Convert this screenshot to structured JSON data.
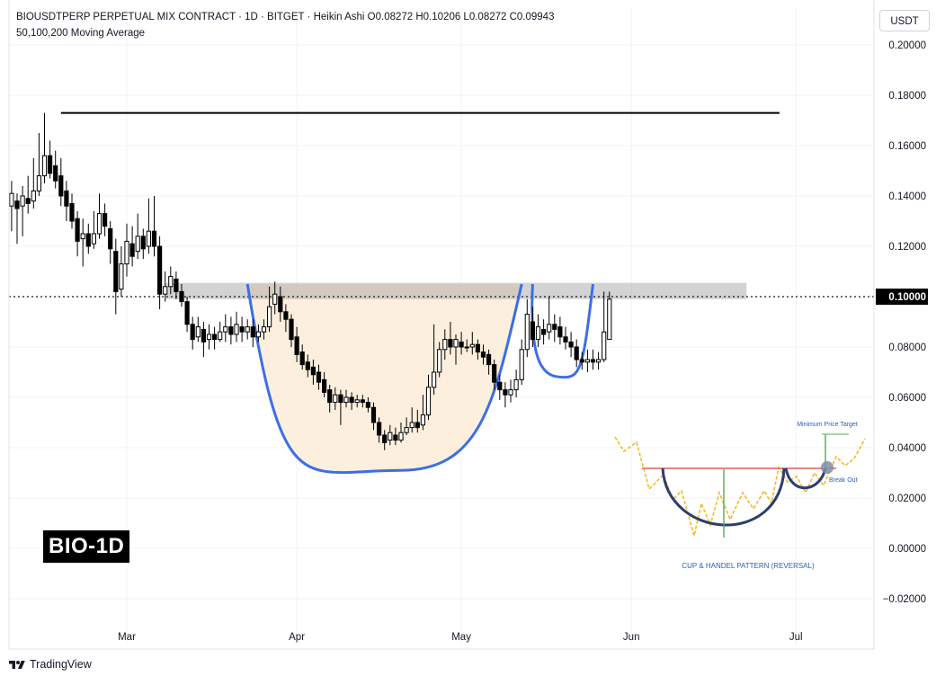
{
  "header": {
    "title": "BIOUSDTPERP PERPETUAL MIX CONTRACT · 1D · BITGET · Heikin Ashi  O0.08272  H0.10206  L0.08272  C0.09943",
    "indicator": "50,100,200 Moving Average"
  },
  "currency_button": "USDT",
  "badge": "BIO-1D",
  "footer": {
    "brand": "TradingView"
  },
  "colors": {
    "candle_up": "#ffffff",
    "candle_down": "#000000",
    "candle_outline": "#000000",
    "cup_line": "#3c6ee8",
    "cup_fill": "#fdebd5",
    "resistance_zone": "#9e9e9e",
    "resistance_line": "#000000",
    "price_tag_bg": "#000000",
    "inset_zigzag": "#f5b92c",
    "inset_neckline": "#e85a55",
    "inset_cup": "#2c3e6e",
    "inset_target": "#4caf50",
    "inset_text": "#2a5fb4"
  },
  "chart_data": {
    "type": "candlestick",
    "subtype": "Heikin Ashi",
    "symbol": "BIOUSDTPERP",
    "timeframe": "1D",
    "y_axis": {
      "ticks": [
        "0.20000",
        "0.18000",
        "0.16000",
        "0.14000",
        "0.12000",
        "0.10000",
        "0.08000",
        "0.06000",
        "0.04000",
        "0.02000",
        "0.00000",
        "−0.02000"
      ],
      "range": [
        -0.026,
        0.206
      ]
    },
    "x_axis": {
      "ticks": [
        {
          "label": "Mar",
          "date": "2025-03-01"
        },
        {
          "label": "Apr",
          "date": "2025-04-01"
        },
        {
          "label": "May",
          "date": "2025-05-01"
        },
        {
          "label": "Jun",
          "date": "2025-06-01"
        },
        {
          "label": "Jul",
          "date": "2025-07-01"
        }
      ],
      "start_date": "2025-02-08",
      "end_date": "2025-07-19"
    },
    "current_price": {
      "value": 0.1,
      "label": "0.10000"
    },
    "horizontal_line": {
      "value": 0.173,
      "from_date": "2025-02-17",
      "to_date": "2025-06-28"
    },
    "resistance_zone": {
      "low": 0.099,
      "high": 0.1055,
      "from_date": "2025-03-08",
      "to_date": "2025-06-22"
    },
    "cup": {
      "left_date": "2025-03-23",
      "left_price": 0.105,
      "bottom_date": "2025-04-20",
      "bottom_price": 0.031,
      "right_date": "2025-05-12",
      "right_price": 0.105
    },
    "handle": {
      "left_date": "2025-05-14",
      "bottom_date": "2025-05-20",
      "bottom_price": 0.068,
      "right_date": "2025-05-25",
      "right_price": 0.105
    },
    "candles": [
      {
        "d": "2025-02-08",
        "o": 0.136,
        "c": 0.141,
        "h": 0.146,
        "l": 0.126
      },
      {
        "d": "2025-02-09",
        "o": 0.138,
        "c": 0.135,
        "h": 0.141,
        "l": 0.121
      },
      {
        "d": "2025-02-10",
        "o": 0.136,
        "c": 0.14,
        "h": 0.144,
        "l": 0.124
      },
      {
        "d": "2025-02-11",
        "o": 0.139,
        "c": 0.137,
        "h": 0.148,
        "l": 0.133
      },
      {
        "d": "2025-02-12",
        "o": 0.138,
        "c": 0.142,
        "h": 0.155,
        "l": 0.135
      },
      {
        "d": "2025-02-13",
        "o": 0.142,
        "c": 0.148,
        "h": 0.165,
        "l": 0.14
      },
      {
        "d": "2025-02-14",
        "o": 0.148,
        "c": 0.156,
        "h": 0.173,
        "l": 0.145
      },
      {
        "d": "2025-02-15",
        "o": 0.156,
        "c": 0.149,
        "h": 0.162,
        "l": 0.147
      },
      {
        "d": "2025-02-16",
        "o": 0.152,
        "c": 0.146,
        "h": 0.158,
        "l": 0.143
      },
      {
        "d": "2025-02-17",
        "o": 0.148,
        "c": 0.14,
        "h": 0.155,
        "l": 0.136
      },
      {
        "d": "2025-02-18",
        "o": 0.142,
        "c": 0.136,
        "h": 0.146,
        "l": 0.13
      },
      {
        "d": "2025-02-19",
        "o": 0.137,
        "c": 0.13,
        "h": 0.141,
        "l": 0.127
      },
      {
        "d": "2025-02-20",
        "o": 0.131,
        "c": 0.122,
        "h": 0.134,
        "l": 0.116
      },
      {
        "d": "2025-02-21",
        "o": 0.123,
        "c": 0.125,
        "h": 0.131,
        "l": 0.112
      },
      {
        "d": "2025-02-22",
        "o": 0.125,
        "c": 0.12,
        "h": 0.129,
        "l": 0.117
      },
      {
        "d": "2025-02-23",
        "o": 0.121,
        "c": 0.125,
        "h": 0.134,
        "l": 0.119
      },
      {
        "d": "2025-02-24",
        "o": 0.125,
        "c": 0.133,
        "h": 0.141,
        "l": 0.123
      },
      {
        "d": "2025-02-25",
        "o": 0.133,
        "c": 0.128,
        "h": 0.137,
        "l": 0.124
      },
      {
        "d": "2025-02-26",
        "o": 0.127,
        "c": 0.119,
        "h": 0.13,
        "l": 0.113
      },
      {
        "d": "2025-02-27",
        "o": 0.118,
        "c": 0.102,
        "h": 0.123,
        "l": 0.093
      },
      {
        "d": "2025-02-28",
        "o": 0.103,
        "c": 0.113,
        "h": 0.12,
        "l": 0.1
      },
      {
        "d": "2025-03-01",
        "o": 0.113,
        "c": 0.122,
        "h": 0.129,
        "l": 0.108
      },
      {
        "d": "2025-03-02",
        "o": 0.121,
        "c": 0.116,
        "h": 0.128,
        "l": 0.112
      },
      {
        "d": "2025-03-03",
        "o": 0.118,
        "c": 0.124,
        "h": 0.133,
        "l": 0.115
      },
      {
        "d": "2025-03-04",
        "o": 0.124,
        "c": 0.119,
        "h": 0.127,
        "l": 0.115
      },
      {
        "d": "2025-03-05",
        "o": 0.12,
        "c": 0.126,
        "h": 0.139,
        "l": 0.117
      },
      {
        "d": "2025-03-06",
        "o": 0.126,
        "c": 0.12,
        "h": 0.14,
        "l": 0.116
      },
      {
        "d": "2025-03-07",
        "o": 0.12,
        "c": 0.101,
        "h": 0.124,
        "l": 0.095
      },
      {
        "d": "2025-03-08",
        "o": 0.101,
        "c": 0.104,
        "h": 0.11,
        "l": 0.098
      },
      {
        "d": "2025-03-09",
        "o": 0.104,
        "c": 0.108,
        "h": 0.112,
        "l": 0.101
      },
      {
        "d": "2025-03-10",
        "o": 0.107,
        "c": 0.102,
        "h": 0.11,
        "l": 0.099
      },
      {
        "d": "2025-03-11",
        "o": 0.102,
        "c": 0.098,
        "h": 0.105,
        "l": 0.096
      },
      {
        "d": "2025-03-12",
        "o": 0.098,
        "c": 0.089,
        "h": 0.1,
        "l": 0.086
      },
      {
        "d": "2025-03-13",
        "o": 0.089,
        "c": 0.083,
        "h": 0.092,
        "l": 0.079
      },
      {
        "d": "2025-03-14",
        "o": 0.084,
        "c": 0.088,
        "h": 0.092,
        "l": 0.082
      },
      {
        "d": "2025-03-15",
        "o": 0.087,
        "c": 0.082,
        "h": 0.09,
        "l": 0.076
      },
      {
        "d": "2025-03-16",
        "o": 0.083,
        "c": 0.085,
        "h": 0.089,
        "l": 0.079
      },
      {
        "d": "2025-03-17",
        "o": 0.085,
        "c": 0.083,
        "h": 0.088,
        "l": 0.079
      },
      {
        "d": "2025-03-18",
        "o": 0.083,
        "c": 0.086,
        "h": 0.09,
        "l": 0.082
      },
      {
        "d": "2025-03-19",
        "o": 0.086,
        "c": 0.088,
        "h": 0.093,
        "l": 0.082
      },
      {
        "d": "2025-03-20",
        "o": 0.088,
        "c": 0.085,
        "h": 0.092,
        "l": 0.081
      },
      {
        "d": "2025-03-21",
        "o": 0.085,
        "c": 0.089,
        "h": 0.094,
        "l": 0.082
      },
      {
        "d": "2025-03-22",
        "o": 0.088,
        "c": 0.086,
        "h": 0.092,
        "l": 0.082
      },
      {
        "d": "2025-03-23",
        "o": 0.086,
        "c": 0.088,
        "h": 0.091,
        "l": 0.083
      },
      {
        "d": "2025-03-24",
        "o": 0.088,
        "c": 0.084,
        "h": 0.091,
        "l": 0.08
      },
      {
        "d": "2025-03-25",
        "o": 0.084,
        "c": 0.086,
        "h": 0.089,
        "l": 0.082
      },
      {
        "d": "2025-03-26",
        "o": 0.086,
        "c": 0.088,
        "h": 0.091,
        "l": 0.083
      },
      {
        "d": "2025-03-27",
        "o": 0.088,
        "c": 0.096,
        "h": 0.104,
        "l": 0.086
      },
      {
        "d": "2025-03-28",
        "o": 0.097,
        "c": 0.101,
        "h": 0.106,
        "l": 0.093
      },
      {
        "d": "2025-03-29",
        "o": 0.1,
        "c": 0.094,
        "h": 0.104,
        "l": 0.09
      },
      {
        "d": "2025-03-30",
        "o": 0.094,
        "c": 0.091,
        "h": 0.097,
        "l": 0.086
      },
      {
        "d": "2025-03-31",
        "o": 0.091,
        "c": 0.083,
        "h": 0.093,
        "l": 0.08
      },
      {
        "d": "2025-04-01",
        "o": 0.084,
        "c": 0.077,
        "h": 0.088,
        "l": 0.074
      },
      {
        "d": "2025-04-02",
        "o": 0.078,
        "c": 0.073,
        "h": 0.081,
        "l": 0.071
      },
      {
        "d": "2025-04-03",
        "o": 0.074,
        "c": 0.071,
        "h": 0.077,
        "l": 0.068
      },
      {
        "d": "2025-04-04",
        "o": 0.072,
        "c": 0.069,
        "h": 0.075,
        "l": 0.065
      },
      {
        "d": "2025-04-05",
        "o": 0.07,
        "c": 0.066,
        "h": 0.073,
        "l": 0.063
      },
      {
        "d": "2025-04-06",
        "o": 0.067,
        "c": 0.062,
        "h": 0.07,
        "l": 0.06
      },
      {
        "d": "2025-04-07",
        "o": 0.063,
        "c": 0.058,
        "h": 0.065,
        "l": 0.054
      },
      {
        "d": "2025-04-08",
        "o": 0.058,
        "c": 0.061,
        "h": 0.064,
        "l": 0.055
      },
      {
        "d": "2025-04-09",
        "o": 0.061,
        "c": 0.058,
        "h": 0.063,
        "l": 0.049
      },
      {
        "d": "2025-04-10",
        "o": 0.058,
        "c": 0.06,
        "h": 0.063,
        "l": 0.056
      },
      {
        "d": "2025-04-11",
        "o": 0.06,
        "c": 0.058,
        "h": 0.062,
        "l": 0.055
      },
      {
        "d": "2025-04-12",
        "o": 0.058,
        "c": 0.059,
        "h": 0.061,
        "l": 0.056
      },
      {
        "d": "2025-04-13",
        "o": 0.059,
        "c": 0.058,
        "h": 0.061,
        "l": 0.056
      },
      {
        "d": "2025-04-14",
        "o": 0.058,
        "c": 0.056,
        "h": 0.06,
        "l": 0.054
      },
      {
        "d": "2025-04-15",
        "o": 0.056,
        "c": 0.05,
        "h": 0.058,
        "l": 0.047
      },
      {
        "d": "2025-04-16",
        "o": 0.05,
        "c": 0.045,
        "h": 0.052,
        "l": 0.042
      },
      {
        "d": "2025-04-17",
        "o": 0.045,
        "c": 0.042,
        "h": 0.047,
        "l": 0.039
      },
      {
        "d": "2025-04-18",
        "o": 0.043,
        "c": 0.046,
        "h": 0.049,
        "l": 0.041
      },
      {
        "d": "2025-04-19",
        "o": 0.045,
        "c": 0.043,
        "h": 0.048,
        "l": 0.041
      },
      {
        "d": "2025-04-20",
        "o": 0.043,
        "c": 0.046,
        "h": 0.05,
        "l": 0.042
      },
      {
        "d": "2025-04-21",
        "o": 0.046,
        "c": 0.048,
        "h": 0.052,
        "l": 0.045
      },
      {
        "d": "2025-04-22",
        "o": 0.048,
        "c": 0.05,
        "h": 0.056,
        "l": 0.046
      },
      {
        "d": "2025-04-23",
        "o": 0.05,
        "c": 0.048,
        "h": 0.055,
        "l": 0.046
      },
      {
        "d": "2025-04-24",
        "o": 0.049,
        "c": 0.053,
        "h": 0.061,
        "l": 0.047
      },
      {
        "d": "2025-04-25",
        "o": 0.053,
        "c": 0.064,
        "h": 0.069,
        "l": 0.051
      },
      {
        "d": "2025-04-26",
        "o": 0.064,
        "c": 0.07,
        "h": 0.089,
        "l": 0.061
      },
      {
        "d": "2025-04-27",
        "o": 0.07,
        "c": 0.079,
        "h": 0.082,
        "l": 0.068
      },
      {
        "d": "2025-04-28",
        "o": 0.079,
        "c": 0.083,
        "h": 0.087,
        "l": 0.075
      },
      {
        "d": "2025-04-29",
        "o": 0.083,
        "c": 0.08,
        "h": 0.09,
        "l": 0.077
      },
      {
        "d": "2025-04-30",
        "o": 0.08,
        "c": 0.083,
        "h": 0.085,
        "l": 0.073
      },
      {
        "d": "2025-05-01",
        "o": 0.082,
        "c": 0.08,
        "h": 0.086,
        "l": 0.077
      },
      {
        "d": "2025-05-02",
        "o": 0.08,
        "c": 0.08,
        "h": 0.083,
        "l": 0.078
      },
      {
        "d": "2025-05-03",
        "o": 0.08,
        "c": 0.081,
        "h": 0.086,
        "l": 0.077
      },
      {
        "d": "2025-05-04",
        "o": 0.081,
        "c": 0.078,
        "h": 0.083,
        "l": 0.075
      },
      {
        "d": "2025-05-05",
        "o": 0.078,
        "c": 0.076,
        "h": 0.081,
        "l": 0.073
      },
      {
        "d": "2025-05-06",
        "o": 0.077,
        "c": 0.073,
        "h": 0.079,
        "l": 0.069
      },
      {
        "d": "2025-05-07",
        "o": 0.073,
        "c": 0.066,
        "h": 0.075,
        "l": 0.063
      },
      {
        "d": "2025-05-08",
        "o": 0.066,
        "c": 0.063,
        "h": 0.069,
        "l": 0.059
      },
      {
        "d": "2025-05-09",
        "o": 0.063,
        "c": 0.061,
        "h": 0.066,
        "l": 0.056
      },
      {
        "d": "2025-05-10",
        "o": 0.061,
        "c": 0.063,
        "h": 0.067,
        "l": 0.058
      },
      {
        "d": "2025-05-11",
        "o": 0.063,
        "c": 0.067,
        "h": 0.071,
        "l": 0.06
      },
      {
        "d": "2025-05-12",
        "o": 0.067,
        "c": 0.079,
        "h": 0.083,
        "l": 0.065
      },
      {
        "d": "2025-05-13",
        "o": 0.079,
        "c": 0.093,
        "h": 0.099,
        "l": 0.076
      },
      {
        "d": "2025-05-14",
        "o": 0.09,
        "c": 0.083,
        "h": 0.096,
        "l": 0.08
      },
      {
        "d": "2025-05-15",
        "o": 0.083,
        "c": 0.088,
        "h": 0.093,
        "l": 0.08
      },
      {
        "d": "2025-05-16",
        "o": 0.087,
        "c": 0.085,
        "h": 0.091,
        "l": 0.081
      },
      {
        "d": "2025-05-17",
        "o": 0.086,
        "c": 0.089,
        "h": 0.1,
        "l": 0.083
      },
      {
        "d": "2025-05-18",
        "o": 0.089,
        "c": 0.087,
        "h": 0.093,
        "l": 0.082
      },
      {
        "d": "2025-05-19",
        "o": 0.088,
        "c": 0.084,
        "h": 0.092,
        "l": 0.081
      },
      {
        "d": "2025-05-20",
        "o": 0.084,
        "c": 0.082,
        "h": 0.088,
        "l": 0.079
      },
      {
        "d": "2025-05-21",
        "o": 0.082,
        "c": 0.08,
        "h": 0.086,
        "l": 0.076
      },
      {
        "d": "2025-05-22",
        "o": 0.08,
        "c": 0.075,
        "h": 0.083,
        "l": 0.072
      },
      {
        "d": "2025-05-23",
        "o": 0.075,
        "c": 0.074,
        "h": 0.078,
        "l": 0.071
      },
      {
        "d": "2025-05-24",
        "o": 0.074,
        "c": 0.075,
        "h": 0.079,
        "l": 0.07
      },
      {
        "d": "2025-05-25",
        "o": 0.075,
        "c": 0.074,
        "h": 0.079,
        "l": 0.071
      },
      {
        "d": "2025-05-26",
        "o": 0.074,
        "c": 0.075,
        "h": 0.078,
        "l": 0.071
      },
      {
        "d": "2025-05-27",
        "o": 0.075,
        "c": 0.086,
        "h": 0.102,
        "l": 0.074
      },
      {
        "d": "2025-05-28",
        "o": 0.083,
        "c": 0.099,
        "h": 0.102,
        "l": 0.083
      }
    ],
    "inset": {
      "title": "CUP & HANDEL PATTERN (REVERSAL)",
      "target_label": "Minimum Price Target",
      "breakout_label": "Break Out"
    }
  }
}
